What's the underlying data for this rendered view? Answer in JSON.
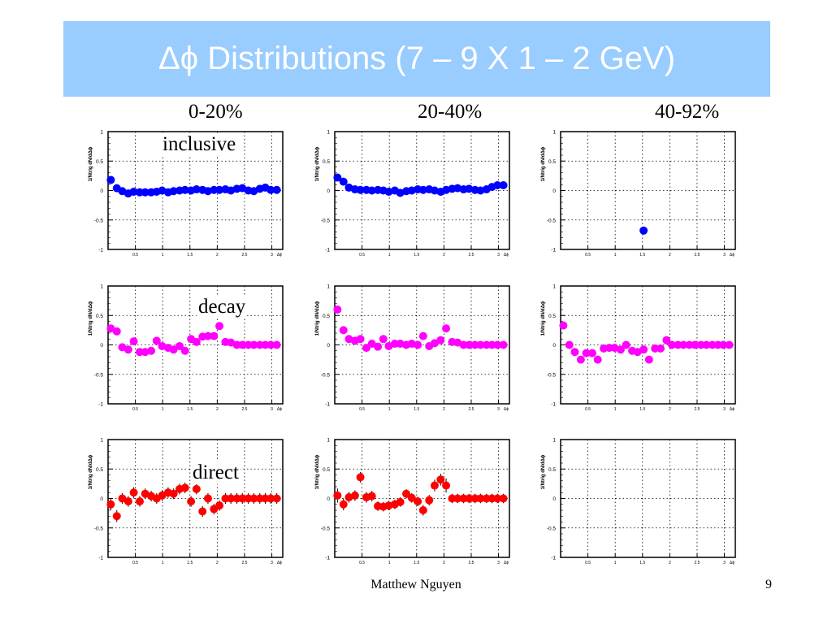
{
  "slide": {
    "title": "Δϕ Distributions (7 – 9 X 1 – 2 GeV)",
    "columns": [
      "0-20%",
      "20-40%",
      "40-92%"
    ],
    "rows": [
      "inclusive",
      "decay",
      "direct"
    ],
    "footer_author": "Matthew Nguyen",
    "page_number": "9"
  },
  "colors": {
    "title_bar": "#99ccff",
    "inclusive": "#0000ff",
    "decay": "#ff00ff",
    "direct": "#ff0000"
  },
  "chart_data": [
    {
      "type": "scatter",
      "row": "inclusive",
      "column": "0-20%",
      "ylabel": "1/Ntrig dN/dΔϕ",
      "xlabel": "Δϕ",
      "xlim": [
        0,
        3.2
      ],
      "ylim": [
        -1,
        1
      ],
      "yticks": [
        "-1",
        "-0.5",
        "0",
        "0.5",
        "1"
      ],
      "xticks": [
        "0.5",
        "1",
        "1.5",
        "2",
        "2.5",
        "3"
      ],
      "grid": true,
      "x": [
        0.05,
        0.16,
        0.26,
        0.37,
        0.47,
        0.58,
        0.68,
        0.79,
        0.89,
        0.99,
        1.1,
        1.2,
        1.31,
        1.41,
        1.52,
        1.62,
        1.73,
        1.83,
        1.94,
        2.04,
        2.15,
        2.25,
        2.36,
        2.46,
        2.57,
        2.67,
        2.78,
        2.88,
        2.98,
        3.09
      ],
      "y": [
        0.18,
        0.04,
        -0.01,
        -0.05,
        -0.02,
        -0.03,
        -0.03,
        -0.03,
        -0.02,
        0.0,
        -0.03,
        -0.01,
        0.0,
        0.01,
        0.0,
        0.02,
        0.01,
        -0.01,
        0.01,
        0.01,
        0.02,
        0.0,
        0.03,
        0.04,
        0.0,
        -0.01,
        0.03,
        0.05,
        0.01,
        0.01
      ],
      "err": [
        0.04,
        0.03,
        0.02,
        0.02,
        0.02,
        0.02,
        0.02,
        0.02,
        0.02,
        0.02,
        0.02,
        0.02,
        0.02,
        0.02,
        0.02,
        0.02,
        0.02,
        0.02,
        0.02,
        0.02,
        0.02,
        0.02,
        0.02,
        0.02,
        0.02,
        0.02,
        0.02,
        0.02,
        0.02,
        0.02
      ]
    },
    {
      "type": "scatter",
      "row": "inclusive",
      "column": "20-40%",
      "ylabel": "1/Ntrig dN/dΔϕ",
      "xlabel": "Δϕ",
      "xlim": [
        0,
        3.2
      ],
      "ylim": [
        -1,
        1
      ],
      "yticks": [
        "-1",
        "-0.5",
        "0",
        "0.5",
        "1"
      ],
      "xticks": [
        "0.5",
        "1",
        "1.5",
        "2",
        "2.5",
        "3"
      ],
      "grid": true,
      "x": [
        0.05,
        0.16,
        0.26,
        0.37,
        0.47,
        0.58,
        0.68,
        0.79,
        0.89,
        0.99,
        1.1,
        1.2,
        1.31,
        1.41,
        1.52,
        1.62,
        1.73,
        1.83,
        1.94,
        2.04,
        2.15,
        2.25,
        2.36,
        2.46,
        2.57,
        2.67,
        2.78,
        2.88,
        2.98,
        3.09
      ],
      "y": [
        0.22,
        0.15,
        0.05,
        0.02,
        0.01,
        0.01,
        0.0,
        0.01,
        0.0,
        -0.02,
        0.0,
        -0.04,
        -0.01,
        0.0,
        0.02,
        0.01,
        0.02,
        0.0,
        -0.02,
        0.01,
        0.03,
        0.04,
        0.02,
        0.03,
        0.01,
        0.0,
        0.02,
        0.06,
        0.09,
        0.09
      ],
      "err": [
        0.03,
        0.03,
        0.02,
        0.02,
        0.02,
        0.02,
        0.02,
        0.02,
        0.02,
        0.02,
        0.02,
        0.02,
        0.02,
        0.02,
        0.02,
        0.02,
        0.02,
        0.02,
        0.02,
        0.02,
        0.02,
        0.02,
        0.02,
        0.02,
        0.02,
        0.02,
        0.02,
        0.02,
        0.02,
        0.02
      ]
    },
    {
      "type": "scatter",
      "row": "inclusive",
      "column": "40-92%",
      "ylabel": "1/Ntrig dN/dΔϕ",
      "xlabel": "Δϕ",
      "xlim": [
        0,
        3.2
      ],
      "ylim": [
        -1,
        1
      ],
      "yticks": [
        "-1",
        "-0.5",
        "0",
        "0.5",
        "1"
      ],
      "xticks": [
        "0.5",
        "1",
        "1.5",
        "2",
        "2.5",
        "3"
      ],
      "grid": true,
      "x": [
        1.52
      ],
      "y": [
        -0.68
      ],
      "err": [
        0.03
      ]
    },
    {
      "type": "scatter",
      "row": "decay",
      "column": "0-20%",
      "ylabel": "1/Ntrig dN/dΔϕ",
      "xlabel": "Δϕ",
      "xlim": [
        0,
        3.2
      ],
      "ylim": [
        -1,
        1
      ],
      "yticks": [
        "-1",
        "-0.5",
        "0",
        "0.5",
        "1"
      ],
      "xticks": [
        "0.5",
        "1",
        "1.5",
        "2",
        "2.5",
        "3"
      ],
      "grid": true,
      "x": [
        0.05,
        0.16,
        0.26,
        0.37,
        0.47,
        0.58,
        0.68,
        0.79,
        0.89,
        0.99,
        1.1,
        1.2,
        1.31,
        1.41,
        1.52,
        1.62,
        1.73,
        1.83,
        1.94,
        2.04,
        2.15,
        2.25,
        2.36,
        2.46,
        2.57,
        2.67,
        2.78,
        2.88,
        2.98,
        3.09
      ],
      "y": [
        0.28,
        0.23,
        -0.04,
        -0.08,
        0.06,
        -0.12,
        -0.12,
        -0.1,
        0.07,
        -0.02,
        -0.05,
        -0.08,
        -0.02,
        -0.1,
        0.1,
        0.05,
        0.14,
        0.15,
        0.15,
        0.32,
        0.05,
        0.04,
        0.0,
        0.0,
        0.0,
        0.0,
        0.0,
        0.0,
        0.0,
        0.0
      ],
      "err": [
        0.06,
        0.06,
        0.05,
        0.05,
        0.05,
        0.05,
        0.05,
        0.05,
        0.05,
        0.05,
        0.05,
        0.05,
        0.05,
        0.05,
        0.05,
        0.05,
        0.05,
        0.05,
        0.05,
        0.06,
        0.05,
        0.05,
        0.05,
        0.05,
        0.05,
        0.05,
        0.05,
        0.05,
        0.05,
        0.05
      ]
    },
    {
      "type": "scatter",
      "row": "decay",
      "column": "20-40%",
      "ylabel": "1/Ntrig dN/dΔϕ",
      "xlabel": "Δϕ",
      "xlim": [
        0,
        3.2
      ],
      "ylim": [
        -1,
        1
      ],
      "yticks": [
        "-1",
        "-0.5",
        "0",
        "0.5",
        "1"
      ],
      "xticks": [
        "0.5",
        "1",
        "1.5",
        "2",
        "2.5",
        "3"
      ],
      "grid": true,
      "x": [
        0.05,
        0.16,
        0.26,
        0.37,
        0.47,
        0.58,
        0.68,
        0.79,
        0.89,
        0.99,
        1.1,
        1.2,
        1.31,
        1.41,
        1.52,
        1.62,
        1.73,
        1.83,
        1.94,
        2.04,
        2.15,
        2.25,
        2.36,
        2.46,
        2.57,
        2.67,
        2.78,
        2.88,
        2.98,
        3.09
      ],
      "y": [
        0.6,
        0.25,
        0.1,
        0.07,
        0.1,
        -0.05,
        0.02,
        -0.03,
        0.1,
        -0.02,
        0.02,
        0.02,
        0.0,
        0.02,
        0.0,
        0.15,
        -0.02,
        0.03,
        0.08,
        0.28,
        0.05,
        0.04,
        0.0,
        0.0,
        0.0,
        0.0,
        0.0,
        0.0,
        0.0,
        0.0
      ],
      "err": [
        0.05,
        0.04,
        0.04,
        0.04,
        0.04,
        0.04,
        0.04,
        0.04,
        0.04,
        0.04,
        0.04,
        0.04,
        0.04,
        0.04,
        0.04,
        0.04,
        0.04,
        0.04,
        0.04,
        0.05,
        0.04,
        0.04,
        0.04,
        0.04,
        0.04,
        0.04,
        0.04,
        0.04,
        0.04,
        0.04
      ]
    },
    {
      "type": "scatter",
      "row": "decay",
      "column": "40-92%",
      "ylabel": "1/Ntrig dN/dΔϕ",
      "xlabel": "Δϕ",
      "xlim": [
        0,
        3.2
      ],
      "ylim": [
        -1,
        1
      ],
      "yticks": [
        "-1",
        "-0.5",
        "0",
        "0.5",
        "1"
      ],
      "xticks": [
        "0.5",
        "1",
        "1.5",
        "2",
        "2.5",
        "3"
      ],
      "grid": true,
      "x": [
        0.05,
        0.16,
        0.26,
        0.37,
        0.47,
        0.58,
        0.68,
        0.79,
        0.89,
        0.99,
        1.1,
        1.2,
        1.31,
        1.41,
        1.52,
        1.62,
        1.73,
        1.83,
        1.94,
        2.04,
        2.15,
        2.25,
        2.36,
        2.46,
        2.57,
        2.67,
        2.78,
        2.88,
        2.98,
        3.09
      ],
      "y": [
        0.33,
        0.0,
        -0.12,
        -0.25,
        -0.14,
        -0.14,
        -0.25,
        -0.06,
        -0.05,
        -0.05,
        -0.08,
        0.0,
        -0.1,
        -0.12,
        -0.08,
        -0.25,
        -0.06,
        -0.06,
        0.08,
        0.0,
        0.0,
        0.0,
        0.0,
        0.0,
        0.0,
        0.0,
        0.0,
        0.0,
        0.0,
        0.0
      ],
      "err": [
        0.06,
        0.05,
        0.05,
        0.05,
        0.05,
        0.05,
        0.05,
        0.05,
        0.05,
        0.05,
        0.05,
        0.05,
        0.05,
        0.05,
        0.05,
        0.05,
        0.05,
        0.05,
        0.05,
        0.05,
        0.05,
        0.05,
        0.05,
        0.05,
        0.05,
        0.05,
        0.05,
        0.05,
        0.05,
        0.05
      ]
    },
    {
      "type": "scatter",
      "row": "direct",
      "column": "0-20%",
      "ylabel": "1/Ntrig dN/dΔϕ",
      "xlabel": "Δϕ",
      "xlim": [
        0,
        3.2
      ],
      "ylim": [
        -1,
        1
      ],
      "yticks": [
        "-1",
        "-0.5",
        "0",
        "0.5",
        "1"
      ],
      "xticks": [
        "0.5",
        "1",
        "1.5",
        "2",
        "2.5",
        "3"
      ],
      "grid": true,
      "x": [
        0.05,
        0.16,
        0.26,
        0.37,
        0.47,
        0.58,
        0.68,
        0.79,
        0.89,
        0.99,
        1.1,
        1.2,
        1.31,
        1.41,
        1.52,
        1.62,
        1.73,
        1.83,
        1.94,
        2.04,
        2.15,
        2.25,
        2.36,
        2.46,
        2.57,
        2.67,
        2.78,
        2.88,
        2.98,
        3.09
      ],
      "y": [
        -0.1,
        -0.3,
        0.0,
        -0.05,
        0.1,
        -0.05,
        0.08,
        0.04,
        0.0,
        0.05,
        0.1,
        0.08,
        0.16,
        0.18,
        -0.05,
        0.16,
        -0.22,
        0.0,
        -0.18,
        -0.12,
        0.0,
        0.0,
        0.0,
        0.0,
        0.0,
        0.0,
        0.0,
        0.0,
        0.0,
        0.0
      ],
      "err": [
        0.1,
        0.1,
        0.09,
        0.09,
        0.09,
        0.09,
        0.09,
        0.09,
        0.09,
        0.09,
        0.09,
        0.09,
        0.09,
        0.09,
        0.09,
        0.09,
        0.09,
        0.09,
        0.09,
        0.09,
        0.09,
        0.09,
        0.09,
        0.09,
        0.09,
        0.09,
        0.09,
        0.09,
        0.09,
        0.09
      ]
    },
    {
      "type": "scatter",
      "row": "direct",
      "column": "20-40%",
      "ylabel": "1/Ntrig dN/dΔϕ",
      "xlabel": "Δϕ",
      "xlim": [
        0,
        3.2
      ],
      "ylim": [
        -1,
        1
      ],
      "yticks": [
        "-1",
        "-0.5",
        "0",
        "0.5",
        "1"
      ],
      "xticks": [
        "0.5",
        "1",
        "1.5",
        "2",
        "2.5",
        "3"
      ],
      "grid": true,
      "x": [
        0.05,
        0.16,
        0.26,
        0.37,
        0.47,
        0.58,
        0.68,
        0.79,
        0.89,
        0.99,
        1.1,
        1.2,
        1.31,
        1.41,
        1.52,
        1.62,
        1.73,
        1.83,
        1.94,
        2.04,
        2.15,
        2.25,
        2.36,
        2.46,
        2.57,
        2.67,
        2.78,
        2.88,
        2.98,
        3.09
      ],
      "y": [
        0.05,
        -0.1,
        0.02,
        0.05,
        0.36,
        0.02,
        0.04,
        -0.13,
        -0.14,
        -0.12,
        -0.1,
        -0.06,
        0.08,
        0.01,
        -0.05,
        -0.2,
        -0.03,
        0.22,
        0.32,
        0.22,
        0.0,
        0.0,
        0.0,
        0.0,
        0.0,
        0.0,
        0.0,
        0.0,
        0.0,
        0.0
      ],
      "err": [
        0.12,
        0.1,
        0.09,
        0.09,
        0.09,
        0.09,
        0.09,
        0.08,
        0.08,
        0.08,
        0.08,
        0.08,
        0.08,
        0.08,
        0.08,
        0.09,
        0.09,
        0.1,
        0.1,
        0.12,
        0.08,
        0.08,
        0.08,
        0.08,
        0.08,
        0.08,
        0.08,
        0.08,
        0.08,
        0.08
      ]
    },
    {
      "type": "scatter",
      "row": "direct",
      "column": "40-92%",
      "ylabel": "1/Ntrig dN/dΔϕ",
      "xlabel": "Δϕ",
      "xlim": [
        0,
        3.2
      ],
      "ylim": [
        -1,
        1
      ],
      "yticks": [
        "-1",
        "-0.5",
        "0",
        "0.5",
        "1"
      ],
      "xticks": [
        "0.5",
        "1",
        "1.5",
        "2",
        "2.5",
        "3"
      ],
      "grid": true,
      "x": [],
      "y": [],
      "err": []
    }
  ]
}
